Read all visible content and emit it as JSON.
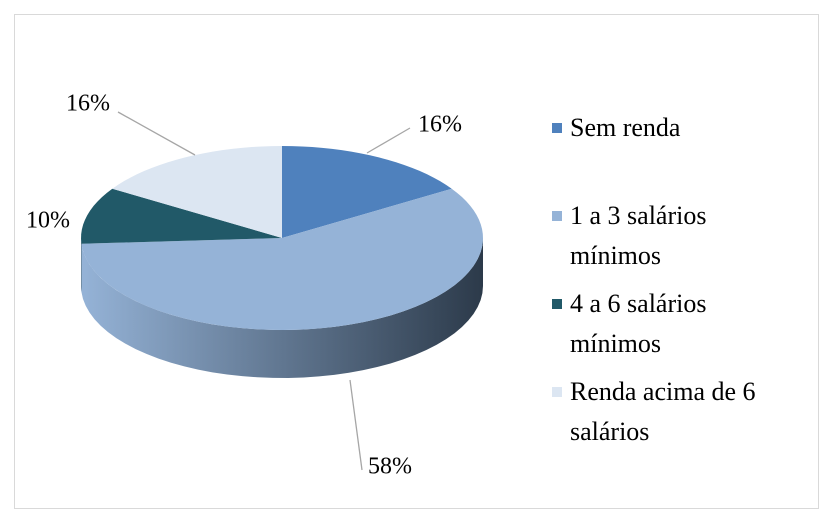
{
  "chart_data": {
    "type": "pie3d",
    "categories": [
      "Sem renda",
      "1 a 3 salários mínimos",
      "4 a 6 salários mínimos",
      "Renda acima de 6 salários"
    ],
    "values": [
      16,
      58,
      10,
      16
    ],
    "value_labels": [
      "16%",
      "58%",
      "10%",
      "16%"
    ],
    "colors": [
      "#4f81bd",
      "#95b3d7",
      "#215968",
      "#dce6f2"
    ],
    "legend": "right"
  }
}
